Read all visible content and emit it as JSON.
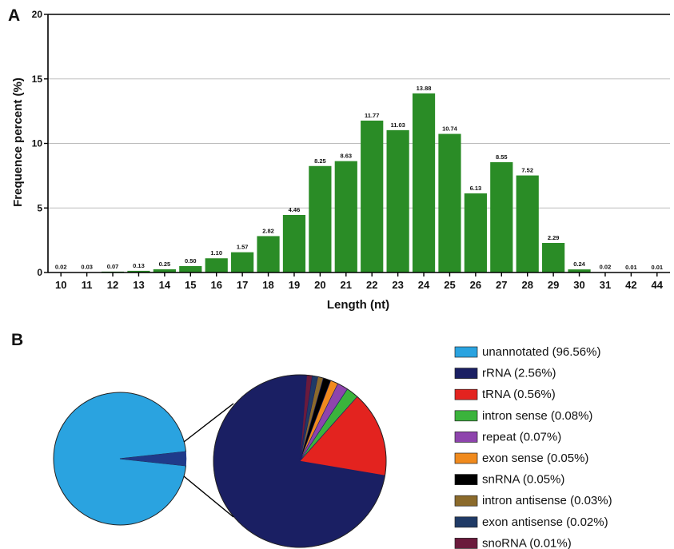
{
  "panel_labels": {
    "a": "A",
    "b": "B"
  },
  "chart_data": [
    {
      "type": "bar",
      "xlabel": "Length (nt)",
      "ylabel": "Frequence percent (%)",
      "ylim": [
        0,
        20
      ],
      "yticks": [
        0,
        5,
        10,
        15,
        20
      ],
      "grid": true,
      "bar_color": "#2a8c26",
      "categories": [
        "10",
        "11",
        "12",
        "13",
        "14",
        "15",
        "16",
        "17",
        "18",
        "19",
        "20",
        "21",
        "22",
        "23",
        "24",
        "25",
        "26",
        "27",
        "28",
        "29",
        "30",
        "31",
        "42",
        "44"
      ],
      "values": [
        0.02,
        0.03,
        0.07,
        0.13,
        0.25,
        0.5,
        1.1,
        1.57,
        2.82,
        4.46,
        8.25,
        8.63,
        11.77,
        11.03,
        13.88,
        10.74,
        6.13,
        8.55,
        7.52,
        2.29,
        0.24,
        0.02,
        0.01,
        0.01
      ],
      "value_labels": [
        "0.02",
        "0.03",
        "0.07",
        "0.13",
        "0.25",
        "0.50",
        "1.10",
        "1.57",
        "2.82",
        "4.46",
        "8.25",
        "8.63",
        "11.77",
        "11.03",
        "13.88",
        "10.74",
        "6.13",
        "8.55",
        "7.52",
        "2.29",
        "0.24",
        "0.02",
        "0.01",
        "0.01"
      ]
    },
    {
      "type": "pie",
      "legend_position": "right",
      "slices": [
        {
          "label": "unannotated (96.56%)",
          "value": 96.56,
          "color": "#2aa3e0"
        },
        {
          "label": "rRNA (2.56%)",
          "value": 2.56,
          "color": "#1a1f63"
        },
        {
          "label": "tRNA (0.56%)",
          "value": 0.56,
          "color": "#e3231f"
        },
        {
          "label": "intron sense (0.08%)",
          "value": 0.08,
          "color": "#3bb33c"
        },
        {
          "label": "repeat (0.07%)",
          "value": 0.07,
          "color": "#8e44ad"
        },
        {
          "label": "exon sense (0.05%)",
          "value": 0.05,
          "color": "#f08a1d"
        },
        {
          "label": "snRNA (0.05%)",
          "value": 0.05,
          "color": "#000000"
        },
        {
          "label": "intron antisense (0.03%)",
          "value": 0.03,
          "color": "#8b6a2b"
        },
        {
          "label": "exon antisense (0.02%)",
          "value": 0.02,
          "color": "#1f3a66"
        },
        {
          "label": "snoRNA (0.01%)",
          "value": 0.01,
          "color": "#6b1a3c"
        }
      ]
    }
  ]
}
